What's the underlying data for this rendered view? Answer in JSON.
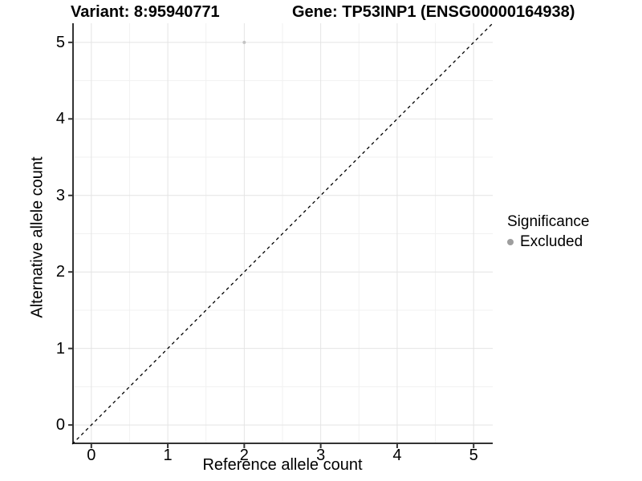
{
  "chart_data": {
    "type": "scatter",
    "titles": {
      "left": "Variant: 8:95940771",
      "right": "Gene: TP53INP1 (ENSG00000164938)"
    },
    "xlabel": "Reference allele count",
    "ylabel": "Alternative allele count",
    "xlim": [
      -0.25,
      5.25
    ],
    "ylim": [
      -0.25,
      5.25
    ],
    "xticks": [
      0,
      1,
      2,
      3,
      4,
      5
    ],
    "yticks": [
      0,
      1,
      2,
      3,
      4,
      5
    ],
    "x_minor_ticks": [
      0.5,
      1.5,
      2.5,
      3.5,
      4.5
    ],
    "y_minor_ticks": [
      0.5,
      1.5,
      2.5,
      3.5,
      4.5
    ],
    "grid": {
      "on": true,
      "major_color": "#e4e4e4",
      "minor_color": "#f1f1f1"
    },
    "axis_color": "#333333",
    "identity_line": {
      "style": "dashed",
      "from": [
        -0.25,
        -0.25
      ],
      "to": [
        5.25,
        5.25
      ],
      "color": "#000000",
      "dash": "4 4"
    },
    "series": [
      {
        "name": "Excluded",
        "color": "#c3c3c3",
        "point_radius": 2,
        "points": [
          {
            "x": 2,
            "y": 5
          }
        ]
      }
    ],
    "legend": {
      "title": "Significance",
      "position": "right",
      "entries": [
        {
          "label": "Excluded",
          "color": "#9e9e9e"
        }
      ]
    }
  }
}
